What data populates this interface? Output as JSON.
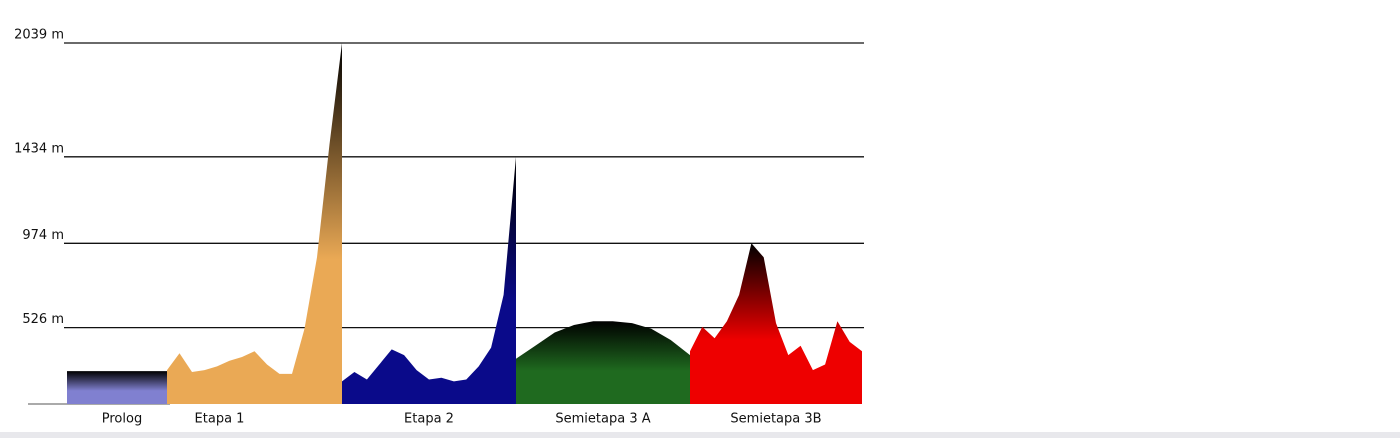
{
  "chart_data": {
    "type": "area",
    "ylim": [
      120,
      2100
    ],
    "yticks": [
      {
        "value": 526,
        "label": "526 m"
      },
      {
        "value": 974,
        "label": "974 m"
      },
      {
        "value": 1434,
        "label": "1434 m"
      },
      {
        "value": 2039,
        "label": "2039 m"
      }
    ],
    "grid": true,
    "series": [
      {
        "name": "Prolog",
        "color": "#8080d0",
        "values": [
          295,
          295
        ]
      },
      {
        "name": "Etapa 1",
        "color": "#eaa955",
        "values": [
          300,
          390,
          290,
          300,
          320,
          350,
          370,
          400,
          330,
          280,
          280,
          520,
          900,
          1500,
          2039
        ]
      },
      {
        "name": "Etapa 2",
        "color": "#0a0a8a",
        "values": [
          240,
          290,
          250,
          330,
          410,
          380,
          300,
          250,
          260,
          240,
          250,
          320,
          420,
          700,
          1434
        ]
      },
      {
        "name": "Semietapa 3 A",
        "color": "#1f6a1f",
        "values": [
          360,
          430,
          500,
          540,
          560,
          560,
          550,
          520,
          460,
          380
        ]
      },
      {
        "name": "Semietapa 3B",
        "color": "#ee0000",
        "values": [
          400,
          530,
          470,
          560,
          700,
          974,
          900,
          550,
          380,
          430,
          300,
          330,
          560,
          450,
          400
        ]
      }
    ]
  }
}
